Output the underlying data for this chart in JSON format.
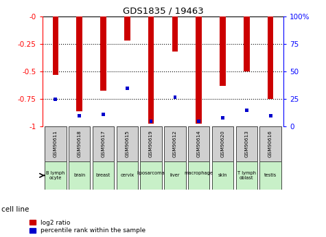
{
  "title": "GDS1835 / 19463",
  "gsm_labels": [
    "GSM90611",
    "GSM90618",
    "GSM90617",
    "GSM90615",
    "GSM90619",
    "GSM90612",
    "GSM90614",
    "GSM90620",
    "GSM90613",
    "GSM90616"
  ],
  "cell_lines": [
    "B lymph\nocyte",
    "brain",
    "breast",
    "cervix",
    "liposarcoma\n",
    "liver",
    "macrophage\n",
    "skin",
    "T lymph\noblast",
    "testis"
  ],
  "log2_ratio": [
    -0.53,
    -0.86,
    -0.67,
    -0.22,
    -0.97,
    -0.32,
    -0.97,
    -0.63,
    -0.5,
    -0.75
  ],
  "percentile_rank_pct": [
    25,
    10,
    11,
    35,
    5,
    27,
    5,
    8,
    15,
    10
  ],
  "bar_color": "#cc0000",
  "blue_color": "#0000cc",
  "left_ylim": [
    -1.0,
    0.0
  ],
  "left_yticks": [
    0.0,
    -0.25,
    -0.5,
    -0.75,
    -1.0
  ],
  "left_yticklabels": [
    "-0",
    "-0.25",
    "-0.5",
    "-0.75",
    "-1"
  ],
  "right_ylim": [
    0,
    100
  ],
  "right_yticks": [
    0,
    25,
    50,
    75,
    100
  ],
  "right_yticklabels": [
    "0",
    "25",
    "50",
    "75",
    "100%"
  ],
  "legend_red": "log2 ratio",
  "legend_blue": "percentile rank within the sample",
  "cell_line_label": "cell line",
  "bg_color_gsm": "#d0d0d0",
  "bg_color_cell": "#c8f0c8",
  "bar_width": 0.25
}
